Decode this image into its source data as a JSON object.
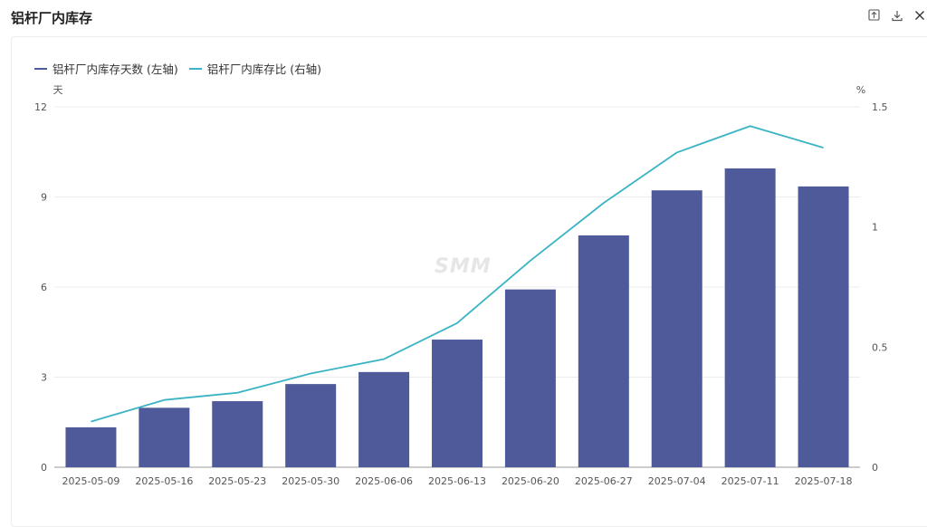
{
  "title": "铝杆厂内库存",
  "toolbar": {
    "icons": [
      "share-icon",
      "download-icon",
      "close-icon"
    ]
  },
  "watermark": "SMM",
  "chart_data": {
    "type": "bar+line",
    "categories": [
      "2025-05-09",
      "2025-05-16",
      "2025-05-23",
      "2025-05-30",
      "2025-06-06",
      "2025-06-13",
      "2025-06-20",
      "2025-06-27",
      "2025-07-04",
      "2025-07-11",
      "2025-07-18"
    ],
    "series": [
      {
        "name": "铝杆厂内库存天数 (左轴)",
        "type": "bar",
        "axis": "left",
        "color": "#4e5a9a",
        "values": [
          1.33,
          1.98,
          2.2,
          2.77,
          3.17,
          4.25,
          5.92,
          7.72,
          9.22,
          9.95,
          9.35
        ]
      },
      {
        "name": "铝杆厂内库存比 (右轴)",
        "type": "line",
        "axis": "right",
        "color": "#3ab4c4",
        "values": [
          0.19,
          0.28,
          0.31,
          0.39,
          0.45,
          0.6,
          0.86,
          1.1,
          1.31,
          1.42,
          1.33
        ]
      }
    ],
    "y_left": {
      "unit": "天",
      "ticks": [
        "0",
        "3",
        "6",
        "9",
        "12"
      ],
      "range": [
        0,
        12
      ]
    },
    "y_right": {
      "unit": "%",
      "ticks": [
        "0",
        "0.5",
        "1",
        "1.5"
      ],
      "range": [
        0,
        1.5
      ]
    },
    "grid": true,
    "legend": "top-left"
  }
}
